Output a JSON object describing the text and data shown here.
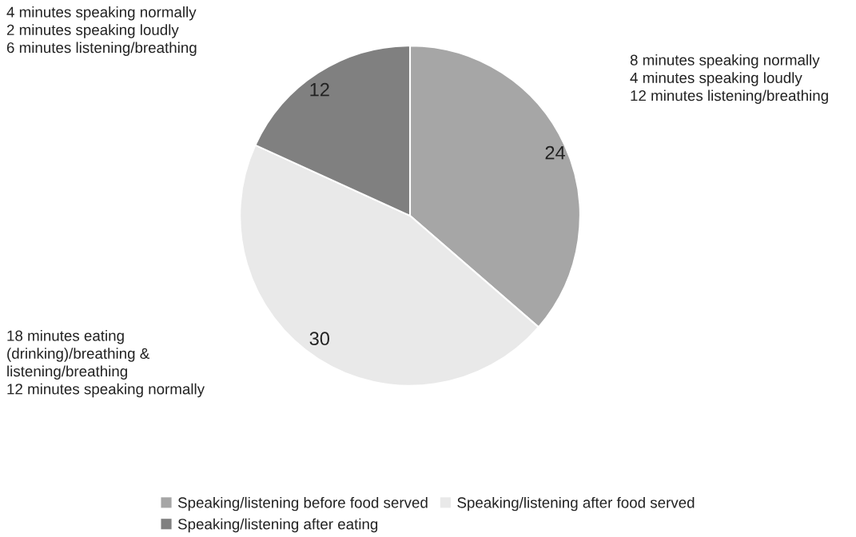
{
  "chart_data": {
    "type": "pie",
    "categories": [
      "Speaking/listening before food served",
      "Speaking/listening after food served",
      "Speaking/listening after eating"
    ],
    "values": [
      24,
      30,
      12
    ],
    "colors": [
      "#a6a6a6",
      "#e9e9e9",
      "#808080"
    ],
    "data_labels": true,
    "legend": "bottom",
    "annotations": [
      "8 minutes speaking normally\n4 minutes speaking loudly\n12 minutes listening/breathing",
      "18 minutes eating\n(drinking)/breathing &\nlistening/breathing\n12 minutes speaking normally",
      "4 minutes speaking normally\n2 minutes speaking loudly\n6 minutes listening/breathing"
    ]
  }
}
